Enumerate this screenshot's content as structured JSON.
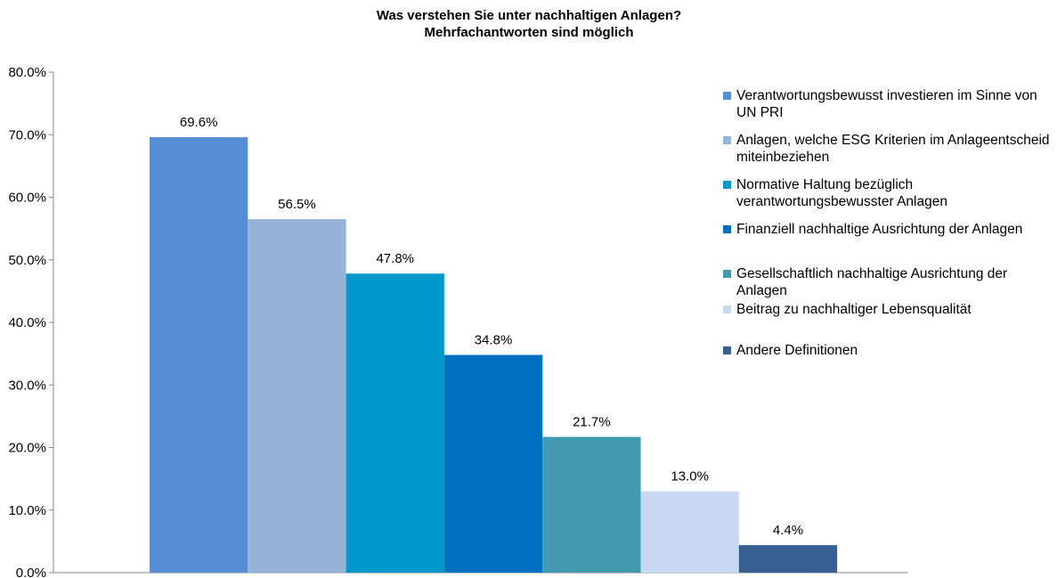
{
  "chart_data": {
    "type": "bar",
    "title": "Was verstehen Sie unter nachhaltigen Anlagen?",
    "subtitle": "Mehrfachantworten sind möglich",
    "categories": [
      "Verantwortungsbewusst investieren im Sinne von UN PRI",
      "Anlagen, welche ESG Kriterien im Anlageentscheid miteinbeziehen",
      "Normative Haltung bezüglich verantwortungsbewusster Anlagen",
      "Finanziell nachhaltige Ausrichtung der Anlagen",
      "Gesellschaftlich nachhaltige Ausrichtung der Anlagen",
      "Beitrag zu nachhaltiger Lebensqualität",
      "Andere Definitionen"
    ],
    "values": [
      69.6,
      56.5,
      47.8,
      34.8,
      21.7,
      13.0,
      4.4
    ],
    "value_labels": [
      "69.6%",
      "56.5%",
      "47.8%",
      "34.8%",
      "21.7%",
      "13.0%",
      "4.4%"
    ],
    "colors": [
      "#558ed5",
      "#95b3d7",
      "#0099cc",
      "#0070c0",
      "#4299b0",
      "#c6d9f1",
      "#376092"
    ],
    "ylim": [
      0,
      80
    ],
    "yticks": [
      {
        "value": 0,
        "label": "0.0%"
      },
      {
        "value": 10,
        "label": "10.0%"
      },
      {
        "value": 20,
        "label": "20.0%"
      },
      {
        "value": 30,
        "label": "30.0%"
      },
      {
        "value": 40,
        "label": "40.0%"
      },
      {
        "value": 50,
        "label": "50.0%"
      },
      {
        "value": 60,
        "label": "60.0%"
      },
      {
        "value": 70,
        "label": "70.0%"
      },
      {
        "value": 80,
        "label": "80.0%"
      }
    ],
    "legend": "right"
  }
}
